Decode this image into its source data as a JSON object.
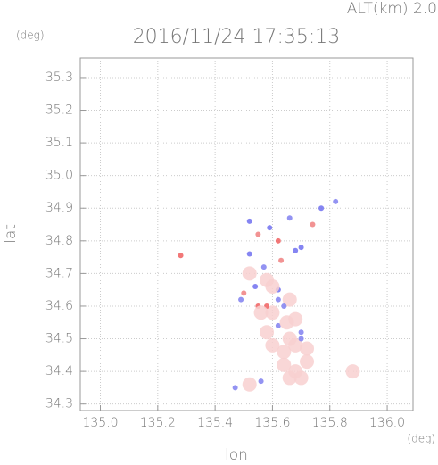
{
  "header": {
    "altitude": "ALT(km) 2.0",
    "unit_top": "(deg)",
    "title": "2016/11/24 17:35:13"
  },
  "chart_data": {
    "type": "scatter",
    "xlabel": "lon",
    "ylabel": "lat",
    "xunit": "(deg)",
    "x": [
      135.28,
      135.52,
      135.55,
      135.59,
      135.62,
      135.66,
      135.7,
      135.74,
      135.77,
      135.82,
      135.52,
      135.57,
      135.63,
      135.68,
      135.5,
      135.54,
      135.58,
      135.62,
      135.66,
      135.55,
      135.6,
      135.64,
      135.68,
      135.58,
      135.62,
      135.66,
      135.7,
      135.6,
      135.64,
      135.68,
      135.72,
      135.64,
      135.68,
      135.72,
      135.66,
      135.7,
      135.47,
      135.52,
      135.56,
      135.88,
      135.52,
      135.58,
      135.62,
      135.56,
      135.65,
      135.7,
      135.49,
      135.6
    ],
    "values": [
      34.755,
      34.86,
      34.82,
      34.84,
      34.8,
      34.87,
      34.78,
      34.85,
      34.9,
      34.92,
      34.76,
      34.72,
      34.74,
      34.77,
      34.64,
      34.66,
      34.68,
      34.65,
      34.62,
      34.6,
      34.58,
      34.6,
      34.56,
      34.52,
      34.54,
      34.5,
      34.52,
      34.48,
      34.46,
      34.48,
      34.47,
      34.42,
      34.4,
      34.43,
      34.38,
      34.38,
      34.35,
      34.36,
      34.37,
      34.4,
      34.7,
      34.6,
      34.62,
      34.58,
      34.55,
      34.5,
      34.62,
      34.66
    ],
    "colors": [
      "#f06060",
      "#7070f0",
      "#f08080",
      "#7070f0",
      "#f06060",
      "#8080f0",
      "#7070f0",
      "#f08080",
      "#7070f0",
      "#8080f0",
      "#7070f0",
      "#8080f0",
      "#f08080",
      "#7070f0",
      "#f08080",
      "#7070f0",
      "#f8d0d0",
      "#7070f0",
      "#f8d0d0",
      "#f06060",
      "#f8d0d0",
      "#8080f0",
      "#f8d0d0",
      "#f8d0d0",
      "#8080f0",
      "#f8d0d0",
      "#8080f0",
      "#f8d0d0",
      "#f8d0d0",
      "#f8d0d0",
      "#f8d0d0",
      "#f8d0d0",
      "#f8d0d0",
      "#f8d0d0",
      "#f8d0d0",
      "#f8d0d0",
      "#8080f0",
      "#f8d0d0",
      "#8080f0",
      "#f8d0d0",
      "#f8d0d0",
      "#f06060",
      "#8080f0",
      "#f8d0d0",
      "#f8d0d0",
      "#8080f0",
      "#8080f0",
      "#f8d0d0"
    ],
    "xlim": [
      134.93,
      136.09
    ],
    "ylim": [
      34.28,
      35.36
    ],
    "xticks": [
      {
        "value": 135.0,
        "label": "135.0"
      },
      135.2,
      135.4,
      135.6,
      135.8,
      {
        "value": 136.0,
        "label": "136.0"
      }
    ],
    "yticks": [
      34.3,
      34.4,
      34.5,
      34.6,
      34.7,
      34.8,
      34.9,
      {
        "value": 35.0,
        "label": "35.0"
      },
      35.1,
      35.2,
      35.3
    ],
    "grid": true
  }
}
